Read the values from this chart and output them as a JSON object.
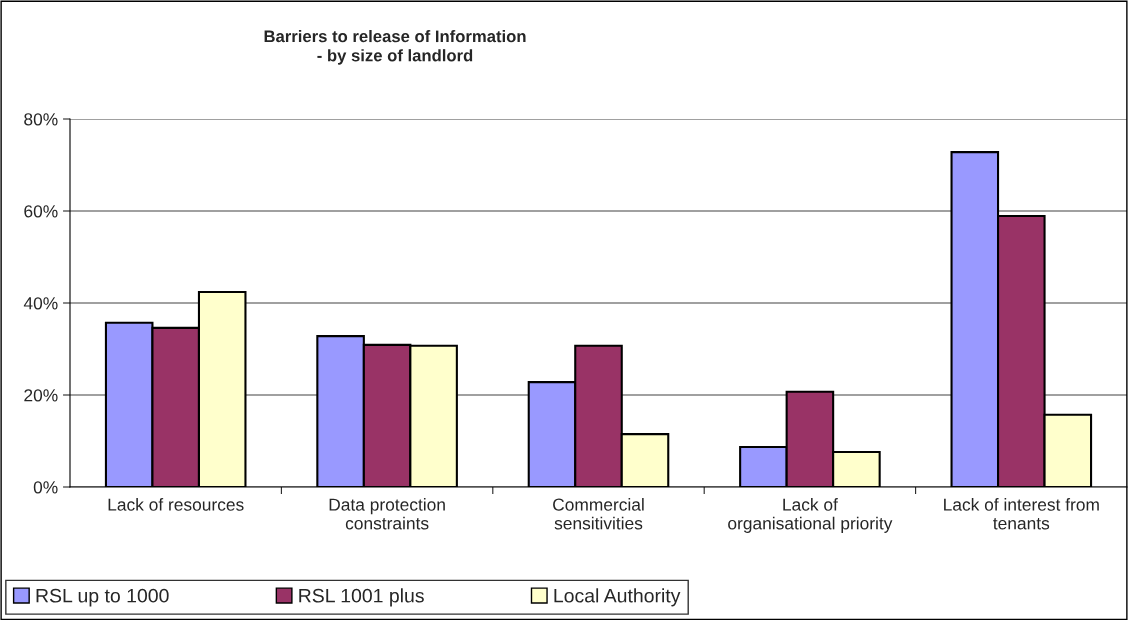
{
  "chart_data": {
    "type": "bar",
    "title": "Barriers to release of Information\n- by size of landlord",
    "categories": [
      "Lack of resources",
      "Data protection\nconstraints",
      "Commercial\nsensitivities",
      "Lack of\norganisational priority",
      "Lack of interest from\ntenants"
    ],
    "series": [
      {
        "name": "RSL up to 1000",
        "color": "#9999ff",
        "values": [
          35.7,
          32.8,
          22.8,
          8.7,
          72.8
        ]
      },
      {
        "name": "RSL 1001 plus",
        "color": "#993366",
        "values": [
          34.6,
          30.9,
          30.7,
          20.7,
          58.9
        ]
      },
      {
        "name": "Local Authority",
        "color": "#ffffcc",
        "values": [
          42.4,
          30.7,
          11.5,
          7.6,
          15.7
        ]
      }
    ],
    "ylim": [
      0,
      80
    ],
    "yticks": [
      {
        "value": 0,
        "label": "0%"
      },
      {
        "value": 20,
        "label": "20%"
      },
      {
        "value": 40,
        "label": "40%"
      },
      {
        "value": 60,
        "label": "60%"
      },
      {
        "value": 80,
        "label": "80%"
      }
    ],
    "grid": "y",
    "legend": "bottom"
  }
}
